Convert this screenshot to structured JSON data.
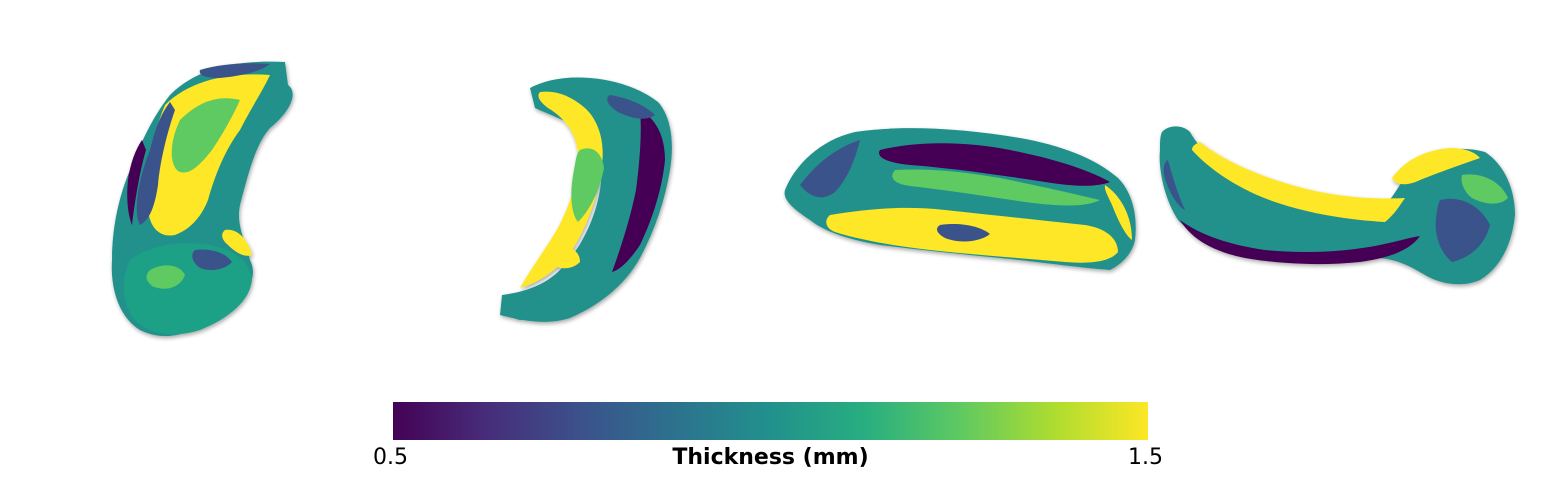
{
  "colorbar": {
    "min_label": "0.5",
    "max_label": "1.5",
    "title": "Thickness (mm)",
    "colormap": "viridis",
    "min_value": 0.5,
    "max_value": 1.5,
    "stops": [
      "#440154",
      "#3b528b",
      "#21918c",
      "#5ec962",
      "#fde725"
    ]
  },
  "views": [
    {
      "id": "view-1"
    },
    {
      "id": "view-2"
    },
    {
      "id": "view-3"
    },
    {
      "id": "view-4"
    }
  ]
}
